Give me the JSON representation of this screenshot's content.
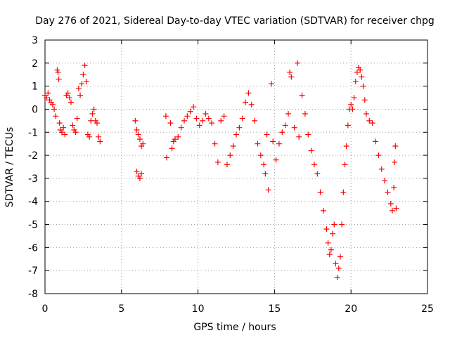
{
  "chart_data": {
    "type": "scatter",
    "title": "Day 276 of 2021, Sidereal Day-to-day VTEC variation (SDTVAR) for receiver chpg",
    "xlabel": "GPS time / hours",
    "ylabel": "SDTVAR / TECUs",
    "xlim": [
      0,
      25
    ],
    "ylim": [
      -8,
      3
    ],
    "x_ticks": [
      0,
      5,
      10,
      15,
      20,
      25
    ],
    "y_ticks": [
      -8,
      -7,
      -6,
      -5,
      -4,
      -3,
      -2,
      -1,
      0,
      1,
      2,
      3
    ],
    "grid": true,
    "marker": "plus",
    "marker_color": "#ff0000",
    "series": [
      {
        "name": "SDTVAR",
        "points": [
          [
            0.0,
            0.6
          ],
          [
            0.1,
            0.5
          ],
          [
            0.2,
            0.7
          ],
          [
            0.3,
            0.4
          ],
          [
            0.4,
            0.3
          ],
          [
            0.5,
            0.2
          ],
          [
            0.6,
            0.0
          ],
          [
            0.7,
            -0.3
          ],
          [
            0.8,
            1.7
          ],
          [
            0.85,
            1.6
          ],
          [
            0.9,
            1.3
          ],
          [
            0.95,
            -0.6
          ],
          [
            1.0,
            -0.9
          ],
          [
            1.1,
            -1.0
          ],
          [
            1.2,
            -0.8
          ],
          [
            1.3,
            -1.1
          ],
          [
            1.4,
            0.6
          ],
          [
            1.5,
            0.7
          ],
          [
            1.6,
            0.5
          ],
          [
            1.7,
            0.3
          ],
          [
            1.8,
            -0.7
          ],
          [
            1.9,
            -0.9
          ],
          [
            2.0,
            -1.0
          ],
          [
            2.1,
            -0.4
          ],
          [
            2.2,
            0.9
          ],
          [
            2.3,
            0.6
          ],
          [
            2.4,
            1.1
          ],
          [
            2.5,
            1.5
          ],
          [
            2.6,
            1.9
          ],
          [
            2.7,
            1.2
          ],
          [
            2.8,
            -1.1
          ],
          [
            2.9,
            -1.2
          ],
          [
            3.0,
            -0.5
          ],
          [
            3.1,
            -0.2
          ],
          [
            3.2,
            0.0
          ],
          [
            3.3,
            -0.5
          ],
          [
            3.4,
            -0.6
          ],
          [
            3.5,
            -1.2
          ],
          [
            3.6,
            -1.4
          ],
          [
            5.9,
            -0.5
          ],
          [
            6.0,
            -0.9
          ],
          [
            6.1,
            -1.1
          ],
          [
            6.2,
            -1.3
          ],
          [
            6.3,
            -1.6
          ],
          [
            6.4,
            -1.5
          ],
          [
            6.0,
            -2.7
          ],
          [
            6.1,
            -2.9
          ],
          [
            6.2,
            -3.0
          ],
          [
            6.3,
            -2.8
          ],
          [
            7.9,
            -0.3
          ],
          [
            7.95,
            -2.1
          ],
          [
            8.2,
            -0.6
          ],
          [
            8.3,
            -1.7
          ],
          [
            8.4,
            -1.4
          ],
          [
            8.5,
            -1.3
          ],
          [
            8.7,
            -1.2
          ],
          [
            8.9,
            -0.8
          ],
          [
            9.1,
            -0.5
          ],
          [
            9.3,
            -0.3
          ],
          [
            9.5,
            -0.1
          ],
          [
            9.7,
            0.1
          ],
          [
            9.9,
            -0.4
          ],
          [
            10.1,
            -0.7
          ],
          [
            10.3,
            -0.5
          ],
          [
            10.5,
            -0.2
          ],
          [
            10.7,
            -0.4
          ],
          [
            10.9,
            -0.6
          ],
          [
            11.1,
            -1.5
          ],
          [
            11.3,
            -2.3
          ],
          [
            11.5,
            -0.5
          ],
          [
            11.7,
            -0.3
          ],
          [
            11.9,
            -2.4
          ],
          [
            12.1,
            -2.0
          ],
          [
            12.3,
            -1.6
          ],
          [
            12.5,
            -1.1
          ],
          [
            12.7,
            -0.8
          ],
          [
            12.9,
            -0.4
          ],
          [
            13.1,
            0.3
          ],
          [
            13.3,
            0.7
          ],
          [
            13.5,
            0.2
          ],
          [
            13.7,
            -0.5
          ],
          [
            13.9,
            -1.5
          ],
          [
            14.1,
            -2.0
          ],
          [
            14.3,
            -2.4
          ],
          [
            14.4,
            -2.8
          ],
          [
            14.5,
            -1.1
          ],
          [
            14.6,
            -3.5
          ],
          [
            14.8,
            1.1
          ],
          [
            14.9,
            -1.4
          ],
          [
            15.1,
            -2.2
          ],
          [
            15.3,
            -1.5
          ],
          [
            15.5,
            -1.0
          ],
          [
            15.7,
            -0.7
          ],
          [
            15.9,
            -0.2
          ],
          [
            16.0,
            1.6
          ],
          [
            16.1,
            1.4
          ],
          [
            16.3,
            -0.8
          ],
          [
            16.5,
            2.0
          ],
          [
            16.6,
            -1.2
          ],
          [
            16.8,
            0.6
          ],
          [
            17.0,
            -0.2
          ],
          [
            17.2,
            -1.1
          ],
          [
            17.4,
            -1.8
          ],
          [
            17.6,
            -2.4
          ],
          [
            17.8,
            -2.8
          ],
          [
            18.0,
            -3.6
          ],
          [
            18.2,
            -4.4
          ],
          [
            18.4,
            -5.2
          ],
          [
            18.5,
            -5.8
          ],
          [
            18.6,
            -6.3
          ],
          [
            18.7,
            -6.1
          ],
          [
            18.8,
            -5.4
          ],
          [
            18.9,
            -5.0
          ],
          [
            19.0,
            -6.7
          ],
          [
            19.1,
            -7.3
          ],
          [
            19.2,
            -6.9
          ],
          [
            19.3,
            -6.4
          ],
          [
            19.4,
            -5.0
          ],
          [
            19.5,
            -3.6
          ],
          [
            19.6,
            -2.4
          ],
          [
            19.7,
            -1.6
          ],
          [
            19.8,
            -0.7
          ],
          [
            19.9,
            0.0
          ],
          [
            20.0,
            0.2
          ],
          [
            20.1,
            0.0
          ],
          [
            20.2,
            0.5
          ],
          [
            20.3,
            1.2
          ],
          [
            20.4,
            1.6
          ],
          [
            20.5,
            1.8
          ],
          [
            20.6,
            1.7
          ],
          [
            20.7,
            1.4
          ],
          [
            20.8,
            1.0
          ],
          [
            20.9,
            0.4
          ],
          [
            21.0,
            -0.2
          ],
          [
            21.2,
            -0.5
          ],
          [
            21.4,
            -0.6
          ],
          [
            21.6,
            -1.4
          ],
          [
            21.8,
            -2.0
          ],
          [
            22.0,
            -2.6
          ],
          [
            22.2,
            -3.1
          ],
          [
            22.4,
            -3.6
          ],
          [
            22.6,
            -4.1
          ],
          [
            22.7,
            -4.4
          ],
          [
            22.8,
            -3.4
          ],
          [
            22.85,
            -2.3
          ],
          [
            22.9,
            -1.6
          ],
          [
            22.95,
            -4.3
          ]
        ]
      }
    ]
  }
}
